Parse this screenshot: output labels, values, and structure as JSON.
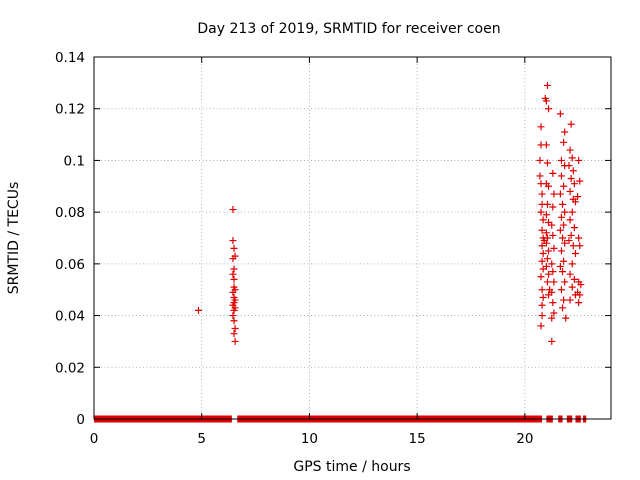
{
  "chart_data": {
    "type": "scatter",
    "title": "Day 213 of 2019, SRMTID for receiver coen",
    "xlabel": "GPS time / hours",
    "ylabel": "SRMTID / TECUs",
    "xlim": [
      0,
      24
    ],
    "ylim": [
      0,
      0.14
    ],
    "x_ticks": [
      0,
      5,
      10,
      15,
      20
    ],
    "x_tick_labels": [
      "0",
      "5",
      "10",
      "15",
      "20"
    ],
    "y_ticks": [
      0,
      0.02,
      0.04,
      0.06,
      0.08,
      0.1,
      0.12,
      0.14
    ],
    "y_tick_labels": [
      "0",
      "0.02",
      "0.04",
      "0.06",
      "0.08",
      "0.1",
      "0.12",
      "0.14"
    ],
    "grid": true,
    "marker": "plus",
    "series": [
      {
        "color": "#dd0000",
        "zero_baseline_segments": [
          [
            0.0,
            6.4
          ],
          [
            6.65,
            20.8
          ],
          [
            21.0,
            21.3
          ],
          [
            21.55,
            21.75
          ],
          [
            21.95,
            22.2
          ],
          [
            22.35,
            22.6
          ],
          [
            22.7,
            22.85
          ]
        ],
        "points": [
          [
            4.85,
            0.042
          ],
          [
            6.45,
            0.081
          ],
          [
            6.45,
            0.069
          ],
          [
            6.5,
            0.066
          ],
          [
            6.45,
            0.062
          ],
          [
            6.55,
            0.063
          ],
          [
            6.5,
            0.058
          ],
          [
            6.45,
            0.056
          ],
          [
            6.5,
            0.054
          ],
          [
            6.5,
            0.051
          ],
          [
            6.55,
            0.05
          ],
          [
            6.45,
            0.049
          ],
          [
            6.5,
            0.047
          ],
          [
            6.55,
            0.046
          ],
          [
            6.5,
            0.045
          ],
          [
            6.45,
            0.044
          ],
          [
            6.55,
            0.043
          ],
          [
            6.5,
            0.042
          ],
          [
            6.45,
            0.04
          ],
          [
            6.5,
            0.038
          ],
          [
            6.55,
            0.035
          ],
          [
            6.5,
            0.033
          ],
          [
            6.55,
            0.03
          ],
          [
            20.75,
            0.113
          ],
          [
            20.75,
            0.106
          ],
          [
            20.7,
            0.1
          ],
          [
            20.7,
            0.094
          ],
          [
            20.75,
            0.091
          ],
          [
            20.8,
            0.087
          ],
          [
            20.8,
            0.083
          ],
          [
            20.75,
            0.08
          ],
          [
            20.85,
            0.077
          ],
          [
            20.8,
            0.073
          ],
          [
            20.85,
            0.07
          ],
          [
            20.9,
            0.069
          ],
          [
            20.8,
            0.067
          ],
          [
            20.85,
            0.064
          ],
          [
            20.8,
            0.061
          ],
          [
            20.85,
            0.058
          ],
          [
            20.75,
            0.055
          ],
          [
            20.8,
            0.05
          ],
          [
            20.85,
            0.047
          ],
          [
            20.8,
            0.044
          ],
          [
            20.8,
            0.04
          ],
          [
            20.75,
            0.036
          ],
          [
            21.05,
            0.129
          ],
          [
            20.95,
            0.124
          ],
          [
            21.0,
            0.123
          ],
          [
            21.1,
            0.12
          ],
          [
            21.0,
            0.106
          ],
          [
            21.05,
            0.099
          ],
          [
            21.0,
            0.091
          ],
          [
            21.1,
            0.09
          ],
          [
            21.05,
            0.083
          ],
          [
            21.0,
            0.079
          ],
          [
            21.1,
            0.076
          ],
          [
            21.0,
            0.072
          ],
          [
            21.05,
            0.07
          ],
          [
            21.0,
            0.068
          ],
          [
            21.1,
            0.065
          ],
          [
            21.05,
            0.062
          ],
          [
            21.0,
            0.059
          ],
          [
            21.1,
            0.056
          ],
          [
            21.05,
            0.053
          ],
          [
            21.15,
            0.05
          ],
          [
            21.1,
            0.048
          ],
          [
            21.3,
            0.095
          ],
          [
            21.35,
            0.087
          ],
          [
            21.3,
            0.082
          ],
          [
            21.25,
            0.075
          ],
          [
            21.3,
            0.071
          ],
          [
            21.35,
            0.066
          ],
          [
            21.25,
            0.06
          ],
          [
            21.3,
            0.057
          ],
          [
            21.35,
            0.053
          ],
          [
            21.25,
            0.049
          ],
          [
            21.3,
            0.045
          ],
          [
            21.35,
            0.041
          ],
          [
            21.25,
            0.039
          ],
          [
            21.25,
            0.03
          ],
          [
            21.65,
            0.118
          ],
          [
            21.85,
            0.111
          ],
          [
            21.8,
            0.107
          ],
          [
            21.7,
            0.1
          ],
          [
            21.85,
            0.098
          ],
          [
            21.7,
            0.094
          ],
          [
            21.8,
            0.09
          ],
          [
            21.65,
            0.087
          ],
          [
            21.75,
            0.083
          ],
          [
            21.85,
            0.08
          ],
          [
            21.7,
            0.078
          ],
          [
            21.8,
            0.075
          ],
          [
            21.65,
            0.073
          ],
          [
            21.75,
            0.07
          ],
          [
            21.85,
            0.068
          ],
          [
            21.7,
            0.065
          ],
          [
            21.8,
            0.061
          ],
          [
            21.65,
            0.059
          ],
          [
            21.75,
            0.057
          ],
          [
            21.85,
            0.053
          ],
          [
            21.7,
            0.05
          ],
          [
            21.8,
            0.046
          ],
          [
            21.75,
            0.043
          ],
          [
            21.9,
            0.039
          ],
          [
            22.15,
            0.114
          ],
          [
            22.1,
            0.104
          ],
          [
            22.2,
            0.101
          ],
          [
            22.05,
            0.098
          ],
          [
            22.25,
            0.096
          ],
          [
            22.15,
            0.093
          ],
          [
            22.3,
            0.091
          ],
          [
            22.1,
            0.088
          ],
          [
            22.25,
            0.085
          ],
          [
            22.35,
            0.084
          ],
          [
            22.2,
            0.08
          ],
          [
            22.1,
            0.077
          ],
          [
            22.3,
            0.074
          ],
          [
            22.15,
            0.071
          ],
          [
            22.05,
            0.069
          ],
          [
            22.25,
            0.067
          ],
          [
            22.35,
            0.064
          ],
          [
            22.2,
            0.06
          ],
          [
            22.1,
            0.056
          ],
          [
            22.3,
            0.054
          ],
          [
            22.2,
            0.051
          ],
          [
            22.35,
            0.048
          ],
          [
            22.1,
            0.046
          ],
          [
            22.5,
            0.1
          ],
          [
            22.55,
            0.092
          ],
          [
            22.45,
            0.086
          ],
          [
            22.5,
            0.07
          ],
          [
            22.55,
            0.067
          ],
          [
            22.5,
            0.053
          ],
          [
            22.6,
            0.052
          ],
          [
            22.45,
            0.049
          ],
          [
            22.55,
            0.048
          ],
          [
            22.5,
            0.045
          ]
        ]
      }
    ]
  }
}
